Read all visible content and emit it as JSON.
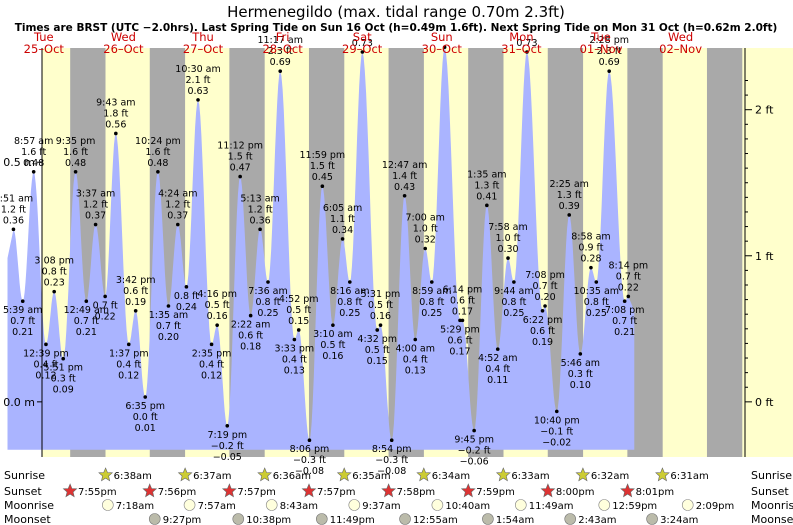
{
  "chart_data": {
    "type": "area",
    "title": "Hermenegildo (max. tidal range 0.70m 2.3ft)",
    "subtitle": "Times are BRST (UTC −2.0hrs). Last Spring Tide on Sun 16 Oct (h=0.49m 1.6ft). Next Spring Tide on Mon 31 Oct (h=0.62m 2.0ft)",
    "y_unit_left": "m",
    "y_unit_right": "ft",
    "ylim": [
      -0.11,
      0.74
    ],
    "days": [
      {
        "dow": "Tue",
        "date": "25–Oct"
      },
      {
        "dow": "Wed",
        "date": "26–Oct"
      },
      {
        "dow": "Thu",
        "date": "27–Oct"
      },
      {
        "dow": "Fri",
        "date": "28–Oct"
      },
      {
        "dow": "Sat",
        "date": "29–Oct"
      },
      {
        "dow": "Sun",
        "date": "30–Oct"
      },
      {
        "dow": "Mon",
        "date": "31–Oct"
      },
      {
        "dow": "Tue",
        "date": "01–Nov"
      },
      {
        "dow": "Wed",
        "date": "02–Nov"
      }
    ],
    "left_ticks": [
      {
        "value": 0.0,
        "label": "0.0 m"
      },
      {
        "value": 0.5,
        "label": "0.5 m"
      }
    ],
    "right_ticks": [
      {
        "value": 0,
        "label": "0 ft"
      },
      {
        "value": 1,
        "label": "1 ft"
      },
      {
        "value": 2,
        "label": "2 ft"
      }
    ],
    "tides": [
      {
        "t": "25 Oct 02:51",
        "time": "2:51 am",
        "h": 0.36,
        "ft": "1.2 ft",
        "m": "0.36"
      },
      {
        "t": "25 Oct 05:39",
        "time": "5:39 am",
        "h": 0.21,
        "ft": "0.7 ft",
        "m": "0.21"
      },
      {
        "t": "25 Oct 08:57",
        "time": "8:57 am",
        "h": 0.48,
        "ft": "1.6 ft",
        "m": "0.48"
      },
      {
        "t": "25 Oct 12:39",
        "time": "12:39 pm",
        "h": 0.12,
        "ft": "0.4 ft",
        "m": "0.12"
      },
      {
        "t": "25 Oct 15:08",
        "time": "3:08 pm",
        "h": 0.23,
        "ft": "0.8 ft",
        "m": "0.23"
      },
      {
        "t": "25 Oct 17:51",
        "time": "5:51 pm",
        "h": 0.09,
        "ft": "0.3 ft",
        "m": "0.09"
      },
      {
        "t": "25 Oct 21:35",
        "time": "9:35 pm",
        "h": 0.48,
        "ft": "1.6 ft",
        "m": "0.48"
      },
      {
        "t": "26 Oct 00:49",
        "time": "12:49 am",
        "h": 0.21,
        "ft": "0.7 ft",
        "m": "0.21"
      },
      {
        "t": "26 Oct 03:37",
        "time": "3:37 am",
        "h": 0.37,
        "ft": "1.2 ft",
        "m": "0.37"
      },
      {
        "t": "26 Oct 06:30",
        "time": "",
        "h": 0.22,
        "ft": "0.7 ft",
        "m": "0.22"
      },
      {
        "t": "26 Oct 09:43",
        "time": "9:43 am",
        "h": 0.56,
        "ft": "1.8 ft",
        "m": "0.56"
      },
      {
        "t": "26 Oct 13:37",
        "time": "1:37 pm",
        "h": 0.12,
        "ft": "0.4 ft",
        "m": "0.12"
      },
      {
        "t": "26 Oct 15:42",
        "time": "3:42 pm",
        "h": 0.19,
        "ft": "0.6 ft",
        "m": "0.19"
      },
      {
        "t": "26 Oct 18:35",
        "time": "6:35 pm",
        "h": 0.01,
        "ft": "0.0 ft",
        "m": "0.01"
      },
      {
        "t": "26 Oct 22:24",
        "time": "10:24 pm",
        "h": 0.48,
        "ft": "1.6 ft",
        "m": "0.48"
      },
      {
        "t": "27 Oct 01:35",
        "time": "1:35 am",
        "h": 0.2,
        "ft": "0.7 ft",
        "m": "0.20"
      },
      {
        "t": "27 Oct 04:24",
        "time": "4:24 am",
        "h": 0.37,
        "ft": "1.2 ft",
        "m": "0.37"
      },
      {
        "t": "27 Oct 07:00",
        "time": "",
        "h": 0.24,
        "ft": "0.8 ft",
        "m": "0.24"
      },
      {
        "t": "27 Oct 10:30",
        "time": "10:30 am",
        "h": 0.63,
        "ft": "2.1 ft",
        "m": "0.63"
      },
      {
        "t": "27 Oct 14:35",
        "time": "2:35 pm",
        "h": 0.12,
        "ft": "0.4 ft",
        "m": "0.12"
      },
      {
        "t": "27 Oct 16:16",
        "time": "4:16 pm",
        "h": 0.16,
        "ft": "0.5 ft",
        "m": "0.16"
      },
      {
        "t": "27 Oct 19:19",
        "time": "7:19 pm",
        "h": -0.05,
        "ft": "−0.2 ft",
        "m": "−0.05"
      },
      {
        "t": "27 Oct 23:12",
        "time": "11:12 pm",
        "h": 0.47,
        "ft": "1.5 ft",
        "m": "0.47"
      },
      {
        "t": "28 Oct 02:22",
        "time": "2:22 am",
        "h": 0.18,
        "ft": "0.6 ft",
        "m": "0.18"
      },
      {
        "t": "28 Oct 05:13",
        "time": "5:13 am",
        "h": 0.36,
        "ft": "1.2 ft",
        "m": "0.36"
      },
      {
        "t": "28 Oct 07:36",
        "time": "7:36 am",
        "h": 0.25,
        "ft": "0.8 ft",
        "m": "0.25"
      },
      {
        "t": "28 Oct 11:17",
        "time": "11:17 am",
        "h": 0.69,
        "ft": "2.3 ft",
        "m": "0.69"
      },
      {
        "t": "28 Oct 15:33",
        "time": "3:33 pm",
        "h": 0.13,
        "ft": "0.4 ft",
        "m": "0.13"
      },
      {
        "t": "28 Oct 16:52",
        "time": "4:52 pm",
        "h": 0.15,
        "ft": "0.5 ft",
        "m": "0.15"
      },
      {
        "t": "28 Oct 20:06",
        "time": "8:06 pm",
        "h": -0.08,
        "ft": "−0.3 ft",
        "m": "−0.08"
      },
      {
        "t": "28 Oct 23:59",
        "time": "11:59 pm",
        "h": 0.45,
        "ft": "1.5 ft",
        "m": "0.45"
      },
      {
        "t": "29 Oct 03:10",
        "time": "3:10 am",
        "h": 0.16,
        "ft": "0.5 ft",
        "m": "0.16"
      },
      {
        "t": "29 Oct 06:05",
        "time": "6:05 am",
        "h": 0.34,
        "ft": "1.1 ft",
        "m": "0.34"
      },
      {
        "t": "29 Oct 08:16",
        "time": "8:16 am",
        "h": 0.25,
        "ft": "0.8 ft",
        "m": "0.25"
      },
      {
        "t": "29 Oct 12:03",
        "time": "",
        "h": 0.73,
        "ft": "",
        "m": "0.73"
      },
      {
        "t": "29 Oct 16:32",
        "time": "4:32 pm",
        "h": 0.15,
        "ft": "0.5 ft",
        "m": "0.15"
      },
      {
        "t": "29 Oct 17:31",
        "time": "5:31 pm",
        "h": 0.16,
        "ft": "0.5 ft",
        "m": "0.16"
      },
      {
        "t": "29 Oct 20:54",
        "time": "8:54 pm",
        "h": -0.08,
        "ft": "−0.3 ft",
        "m": "−0.08"
      },
      {
        "t": "30 Oct 00:47",
        "time": "12:47 am",
        "h": 0.43,
        "ft": "1.4 ft",
        "m": "0.43"
      },
      {
        "t": "30 Oct 04:00",
        "time": "4:00 am",
        "h": 0.13,
        "ft": "0.4 ft",
        "m": "0.13"
      },
      {
        "t": "30 Oct 07:00",
        "time": "7:00 am",
        "h": 0.32,
        "ft": "1.0 ft",
        "m": "0.32"
      },
      {
        "t": "30 Oct 08:59",
        "time": "8:59 am",
        "h": 0.25,
        "ft": "0.8 ft",
        "m": "0.25"
      },
      {
        "t": "30 Oct 12:51",
        "time": "",
        "h": 0.74,
        "ft": "",
        "m": ""
      },
      {
        "t": "30 Oct 17:29",
        "time": "5:29 pm",
        "h": 0.17,
        "ft": "0.6 ft",
        "m": "0.17"
      },
      {
        "t": "30 Oct 18:14",
        "time": "6:14 pm",
        "h": 0.17,
        "ft": "0.6 ft",
        "m": "0.17"
      },
      {
        "t": "30 Oct 21:45",
        "time": "9:45 pm",
        "h": -0.06,
        "ft": "−0.2 ft",
        "m": "−0.06"
      },
      {
        "t": "31 Oct 01:35",
        "time": "1:35 am",
        "h": 0.41,
        "ft": "1.3 ft",
        "m": "0.41"
      },
      {
        "t": "31 Oct 04:52",
        "time": "4:52 am",
        "h": 0.11,
        "ft": "0.4 ft",
        "m": "0.11"
      },
      {
        "t": "31 Oct 07:58",
        "time": "7:58 am",
        "h": 0.3,
        "ft": "1.0 ft",
        "m": "0.30"
      },
      {
        "t": "31 Oct 09:44",
        "time": "9:44 am",
        "h": 0.25,
        "ft": "0.8 ft",
        "m": "0.25"
      },
      {
        "t": "31 Oct 13:40",
        "time": "",
        "h": 0.73,
        "ft": "",
        "m": "0.73"
      },
      {
        "t": "31 Oct 18:22",
        "time": "6:22 pm",
        "h": 0.19,
        "ft": "0.6 ft",
        "m": "0.19"
      },
      {
        "t": "31 Oct 19:08",
        "time": "7:08 pm",
        "h": 0.2,
        "ft": "0.7 ft",
        "m": "0.20"
      },
      {
        "t": "31 Oct 22:40",
        "time": "10:40 pm",
        "h": -0.02,
        "ft": "−0.1 ft",
        "m": "−0.02"
      },
      {
        "t": "1 Nov 02:25",
        "time": "2:25 am",
        "h": 0.39,
        "ft": "1.3 ft",
        "m": "0.39"
      },
      {
        "t": "1 Nov 05:46",
        "time": "5:46 am",
        "h": 0.1,
        "ft": "0.3 ft",
        "m": "0.10"
      },
      {
        "t": "1 Nov 08:58",
        "time": "8:58 am",
        "h": 0.28,
        "ft": "0.9 ft",
        "m": "0.28"
      },
      {
        "t": "1 Nov 10:35",
        "time": "10:35 am",
        "h": 0.25,
        "ft": "0.8 ft",
        "m": "0.25"
      },
      {
        "t": "1 Nov 14:28",
        "time": "2:28 pm",
        "h": 0.69,
        "ft": "2.3 ft",
        "m": "0.69"
      },
      {
        "t": "1 Nov 19:08",
        "time": "7:08 pm",
        "h": 0.21,
        "ft": "0.7 ft",
        "m": "0.21"
      },
      {
        "t": "1 Nov 20:14",
        "time": "8:14 pm",
        "h": 0.22,
        "ft": "0.7 ft",
        "m": "0.22"
      }
    ],
    "sunrise": [
      "6:38am",
      "6:37am",
      "6:36am",
      "6:35am",
      "6:34am",
      "6:33am",
      "6:32am",
      "6:31am"
    ],
    "sunset": [
      "7:55pm",
      "7:56pm",
      "7:57pm",
      "7:57pm",
      "7:58pm",
      "7:59pm",
      "8:00pm",
      "8:01pm"
    ],
    "moonrise": [
      "7:18am",
      "7:57am",
      "8:43am",
      "9:37am",
      "10:40am",
      "11:49am",
      "12:59pm",
      "2:09pm"
    ],
    "moonset": [
      "9:27pm",
      "10:38pm",
      "11:49pm",
      "12:55am",
      "1:54am",
      "2:43am",
      "3:24am"
    ],
    "row_labels": [
      "Sunrise",
      "Sunset",
      "Moonrise",
      "Moonset"
    ],
    "colors": {
      "night": "#a9a9a9",
      "day": "#ffffcc",
      "water": "#aab4ff",
      "date_text": "#cc0000",
      "sun_icon": "#cccc33",
      "sunset_icon": "#dd3333",
      "moon_icon": "#ffffdd",
      "moonset_icon": "#bbbbaa"
    }
  }
}
